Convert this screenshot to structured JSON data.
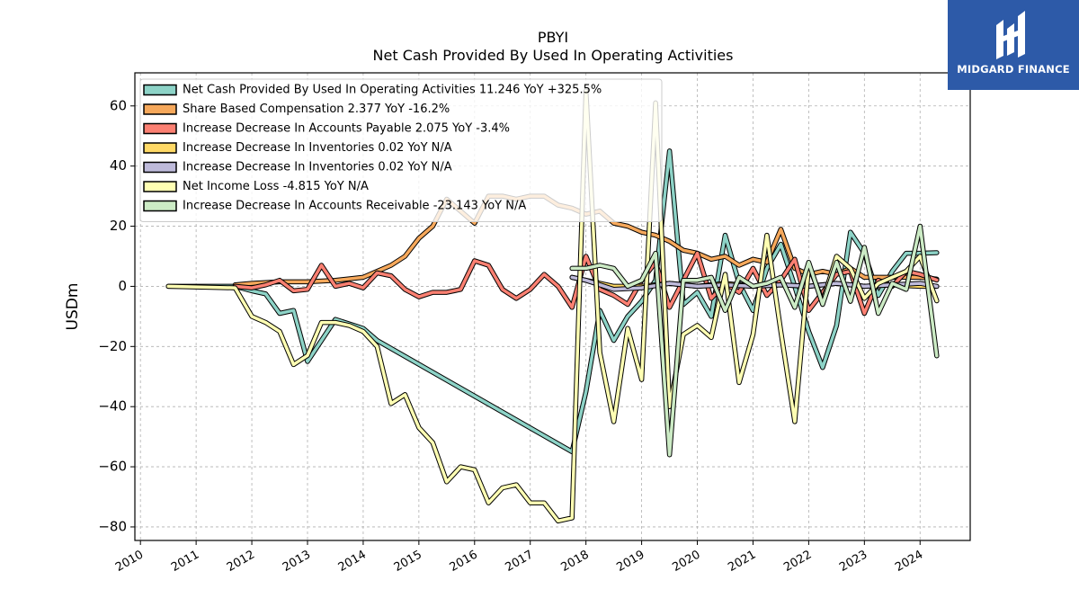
{
  "chart_data": {
    "type": "line",
    "title": "PBYI",
    "subtitle": "Net Cash Provided By Used In Operating Activities",
    "ylabel": "USDm",
    "xlabel": "",
    "xlim": [
      2009.9,
      2024.9
    ],
    "ylim": [
      -84.5,
      71
    ],
    "x_ticks": [
      2010,
      2011,
      2012,
      2013,
      2014,
      2015,
      2016,
      2017,
      2018,
      2019,
      2020,
      2021,
      2022,
      2023,
      2024
    ],
    "y_ticks": [
      -80,
      -60,
      -40,
      -20,
      0,
      20,
      40,
      60
    ],
    "grid": true,
    "legend_position": "top-left",
    "series": [
      {
        "name": "Net Cash Provided By Used In Operating Activities  11.246 YoY +325.5%",
        "color": "#8dd3c7",
        "points": [
          [
            2010.5,
            0
          ],
          [
            2011.7,
            0
          ],
          [
            2012.0,
            -1.5
          ],
          [
            2012.25,
            -2.5
          ],
          [
            2012.5,
            -9
          ],
          [
            2012.75,
            -8
          ],
          [
            2013.0,
            -25
          ],
          [
            2013.25,
            -18
          ],
          [
            2013.5,
            -11
          ],
          [
            2014.0,
            -14
          ],
          [
            2014.25,
            -18
          ],
          [
            2017.75,
            -55
          ],
          [
            2018.0,
            -35
          ],
          [
            2018.25,
            -8
          ],
          [
            2018.5,
            -18
          ],
          [
            2018.75,
            -10
          ],
          [
            2019.0,
            -5
          ],
          [
            2019.25,
            2
          ],
          [
            2019.5,
            45
          ],
          [
            2019.75,
            -6
          ],
          [
            2020.0,
            -2
          ],
          [
            2020.25,
            -10
          ],
          [
            2020.5,
            17
          ],
          [
            2020.75,
            1
          ],
          [
            2021.0,
            -8
          ],
          [
            2021.25,
            6
          ],
          [
            2021.5,
            14
          ],
          [
            2021.75,
            0
          ],
          [
            2022.0,
            -15
          ],
          [
            2022.25,
            -27
          ],
          [
            2022.5,
            -13
          ],
          [
            2022.75,
            18
          ],
          [
            2023.0,
            11
          ],
          [
            2023.25,
            -3
          ],
          [
            2023.5,
            5
          ],
          [
            2023.75,
            11
          ],
          [
            2024.0,
            11
          ],
          [
            2024.3,
            11.2
          ]
        ]
      },
      {
        "name": "Share Based Compensation  2.377 YoY -16.2%",
        "color": "#f6a85b",
        "points": [
          [
            2011.7,
            0.5
          ],
          [
            2012.0,
            1
          ],
          [
            2012.5,
            1.5
          ],
          [
            2013.0,
            1.5
          ],
          [
            2013.5,
            2
          ],
          [
            2014.0,
            3
          ],
          [
            2014.5,
            7
          ],
          [
            2014.75,
            10
          ],
          [
            2015.0,
            16
          ],
          [
            2015.25,
            20
          ],
          [
            2015.5,
            29
          ],
          [
            2015.75,
            25
          ],
          [
            2016.0,
            21
          ],
          [
            2016.25,
            30
          ],
          [
            2016.5,
            30
          ],
          [
            2016.75,
            29
          ],
          [
            2017.0,
            30
          ],
          [
            2017.25,
            30
          ],
          [
            2017.5,
            27
          ],
          [
            2017.75,
            26
          ],
          [
            2018.0,
            24
          ],
          [
            2018.25,
            25
          ],
          [
            2018.5,
            21
          ],
          [
            2018.75,
            20
          ],
          [
            2019.0,
            18
          ],
          [
            2019.25,
            17
          ],
          [
            2019.5,
            15
          ],
          [
            2019.75,
            12
          ],
          [
            2020.0,
            11
          ],
          [
            2020.25,
            9
          ],
          [
            2020.5,
            10
          ],
          [
            2020.75,
            7
          ],
          [
            2021.0,
            9
          ],
          [
            2021.25,
            8
          ],
          [
            2021.5,
            19
          ],
          [
            2021.75,
            6
          ],
          [
            2022.0,
            4
          ],
          [
            2022.25,
            5
          ],
          [
            2022.5,
            4
          ],
          [
            2022.75,
            6
          ],
          [
            2023.0,
            3
          ],
          [
            2023.25,
            3
          ],
          [
            2023.5,
            3
          ],
          [
            2023.75,
            3
          ],
          [
            2024.0,
            3
          ],
          [
            2024.3,
            2.4
          ]
        ]
      },
      {
        "name": "Increase Decrease In Accounts Payable  2.075 YoY -3.4%",
        "color": "#fb8072",
        "points": [
          [
            2011.7,
            0
          ],
          [
            2012.0,
            -0.5
          ],
          [
            2012.25,
            0.5
          ],
          [
            2012.5,
            2
          ],
          [
            2012.75,
            -1.5
          ],
          [
            2013.0,
            -1
          ],
          [
            2013.25,
            7
          ],
          [
            2013.5,
            0
          ],
          [
            2013.75,
            1
          ],
          [
            2014.0,
            -0.5
          ],
          [
            2014.25,
            4.5
          ],
          [
            2014.5,
            3.5
          ],
          [
            2014.75,
            -1
          ],
          [
            2015.0,
            -3.5
          ],
          [
            2015.25,
            -2
          ],
          [
            2015.5,
            -2
          ],
          [
            2015.75,
            -1
          ],
          [
            2016.0,
            8.5
          ],
          [
            2016.25,
            7
          ],
          [
            2016.5,
            -1
          ],
          [
            2016.75,
            -4
          ],
          [
            2017.0,
            -1
          ],
          [
            2017.25,
            4
          ],
          [
            2017.5,
            0
          ],
          [
            2017.75,
            -7
          ],
          [
            2018.0,
            10
          ],
          [
            2018.25,
            -1
          ],
          [
            2018.5,
            -3
          ],
          [
            2018.75,
            -6
          ],
          [
            2019.0,
            2
          ],
          [
            2019.25,
            8
          ],
          [
            2019.5,
            -7
          ],
          [
            2019.75,
            2
          ],
          [
            2020.0,
            11
          ],
          [
            2020.25,
            -4
          ],
          [
            2020.5,
            1
          ],
          [
            2020.75,
            -2
          ],
          [
            2021.0,
            6
          ],
          [
            2021.25,
            -3
          ],
          [
            2021.5,
            2
          ],
          [
            2021.75,
            9
          ],
          [
            2022.0,
            -8
          ],
          [
            2022.25,
            -2
          ],
          [
            2022.5,
            4
          ],
          [
            2022.75,
            5
          ],
          [
            2023.0,
            -9
          ],
          [
            2023.25,
            2
          ],
          [
            2023.5,
            0
          ],
          [
            2023.75,
            5
          ],
          [
            2024.0,
            4
          ],
          [
            2024.3,
            2.1
          ]
        ]
      },
      {
        "name": "Increase Decrease In Inventories  0.02 YoY N/A",
        "color": "#ffd966",
        "points": [
          [
            2017.75,
            3
          ],
          [
            2018.0,
            2
          ],
          [
            2018.5,
            0
          ],
          [
            2019.0,
            0
          ],
          [
            2019.5,
            1
          ],
          [
            2020.0,
            0
          ],
          [
            2020.5,
            1
          ],
          [
            2021.0,
            0
          ],
          [
            2021.5,
            0.5
          ],
          [
            2022.0,
            0
          ],
          [
            2022.5,
            1
          ],
          [
            2023.0,
            0
          ],
          [
            2023.5,
            0.5
          ],
          [
            2024.0,
            0
          ],
          [
            2024.3,
            0.02
          ]
        ]
      },
      {
        "name": "Increase Decrease In Inventories  0.02 YoY N/A",
        "color": "#bebada",
        "points": [
          [
            2017.75,
            3
          ],
          [
            2018.0,
            2
          ],
          [
            2018.5,
            -1
          ],
          [
            2019.0,
            -0.5
          ],
          [
            2019.5,
            1
          ],
          [
            2020.0,
            0
          ],
          [
            2020.5,
            0.5
          ],
          [
            2021.0,
            0
          ],
          [
            2021.5,
            0.5
          ],
          [
            2022.0,
            0
          ],
          [
            2022.5,
            1
          ],
          [
            2023.0,
            0
          ],
          [
            2023.5,
            0.5
          ],
          [
            2024.0,
            1
          ],
          [
            2024.3,
            0.02
          ]
        ]
      },
      {
        "name": "Net Income Loss  -4.815 YoY N/A",
        "color": "#ffffb3",
        "points": [
          [
            2010.5,
            0
          ],
          [
            2011.7,
            -0.5
          ],
          [
            2012.0,
            -10
          ],
          [
            2012.25,
            -12
          ],
          [
            2012.5,
            -15
          ],
          [
            2012.75,
            -26
          ],
          [
            2013.0,
            -23
          ],
          [
            2013.25,
            -12
          ],
          [
            2013.5,
            -12
          ],
          [
            2013.75,
            -13
          ],
          [
            2014.0,
            -15
          ],
          [
            2014.25,
            -20
          ],
          [
            2014.5,
            -39
          ],
          [
            2014.75,
            -36
          ],
          [
            2015.0,
            -47
          ],
          [
            2015.25,
            -52
          ],
          [
            2015.5,
            -65
          ],
          [
            2015.75,
            -60
          ],
          [
            2016.0,
            -61
          ],
          [
            2016.25,
            -72
          ],
          [
            2016.5,
            -67
          ],
          [
            2016.75,
            -66
          ],
          [
            2017.0,
            -72
          ],
          [
            2017.25,
            -72
          ],
          [
            2017.5,
            -78
          ],
          [
            2017.75,
            -77
          ],
          [
            2018.0,
            65
          ],
          [
            2018.25,
            -22
          ],
          [
            2018.5,
            -45
          ],
          [
            2018.75,
            -14
          ],
          [
            2019.0,
            -31
          ],
          [
            2019.25,
            61
          ],
          [
            2019.5,
            -40
          ],
          [
            2019.75,
            -16
          ],
          [
            2020.0,
            -13
          ],
          [
            2020.25,
            -17
          ],
          [
            2020.5,
            4
          ],
          [
            2020.75,
            -32
          ],
          [
            2021.0,
            -16
          ],
          [
            2021.25,
            17
          ],
          [
            2021.5,
            -15
          ],
          [
            2021.75,
            -45
          ],
          [
            2022.0,
            7
          ],
          [
            2022.25,
            -5
          ],
          [
            2022.5,
            10
          ],
          [
            2022.75,
            6
          ],
          [
            2023.0,
            -4
          ],
          [
            2023.25,
            1
          ],
          [
            2023.5,
            3
          ],
          [
            2023.75,
            5
          ],
          [
            2024.0,
            10
          ],
          [
            2024.3,
            -4.8
          ]
        ]
      },
      {
        "name": "Increase Decrease In Accounts Receivable  -23.143 YoY N/A",
        "color": "#ccebc5",
        "points": [
          [
            2017.75,
            6
          ],
          [
            2018.0,
            6
          ],
          [
            2018.25,
            7
          ],
          [
            2018.5,
            6
          ],
          [
            2018.75,
            0
          ],
          [
            2019.0,
            2
          ],
          [
            2019.25,
            11
          ],
          [
            2019.5,
            -56
          ],
          [
            2019.75,
            2
          ],
          [
            2020.0,
            2
          ],
          [
            2020.25,
            3
          ],
          [
            2020.5,
            -8
          ],
          [
            2020.75,
            3
          ],
          [
            2021.0,
            0
          ],
          [
            2021.25,
            1
          ],
          [
            2021.5,
            3
          ],
          [
            2021.75,
            -7
          ],
          [
            2022.0,
            8
          ],
          [
            2022.25,
            -6
          ],
          [
            2022.5,
            8
          ],
          [
            2022.75,
            -5
          ],
          [
            2023.0,
            13
          ],
          [
            2023.25,
            -9
          ],
          [
            2023.5,
            1
          ],
          [
            2023.75,
            -1
          ],
          [
            2024.0,
            20
          ],
          [
            2024.3,
            -23.1
          ]
        ]
      }
    ]
  },
  "logo": {
    "text": "MIDGARD FINANCE",
    "background": "#2d5aa8",
    "icon": "midgard-finance-logo-mark"
  }
}
